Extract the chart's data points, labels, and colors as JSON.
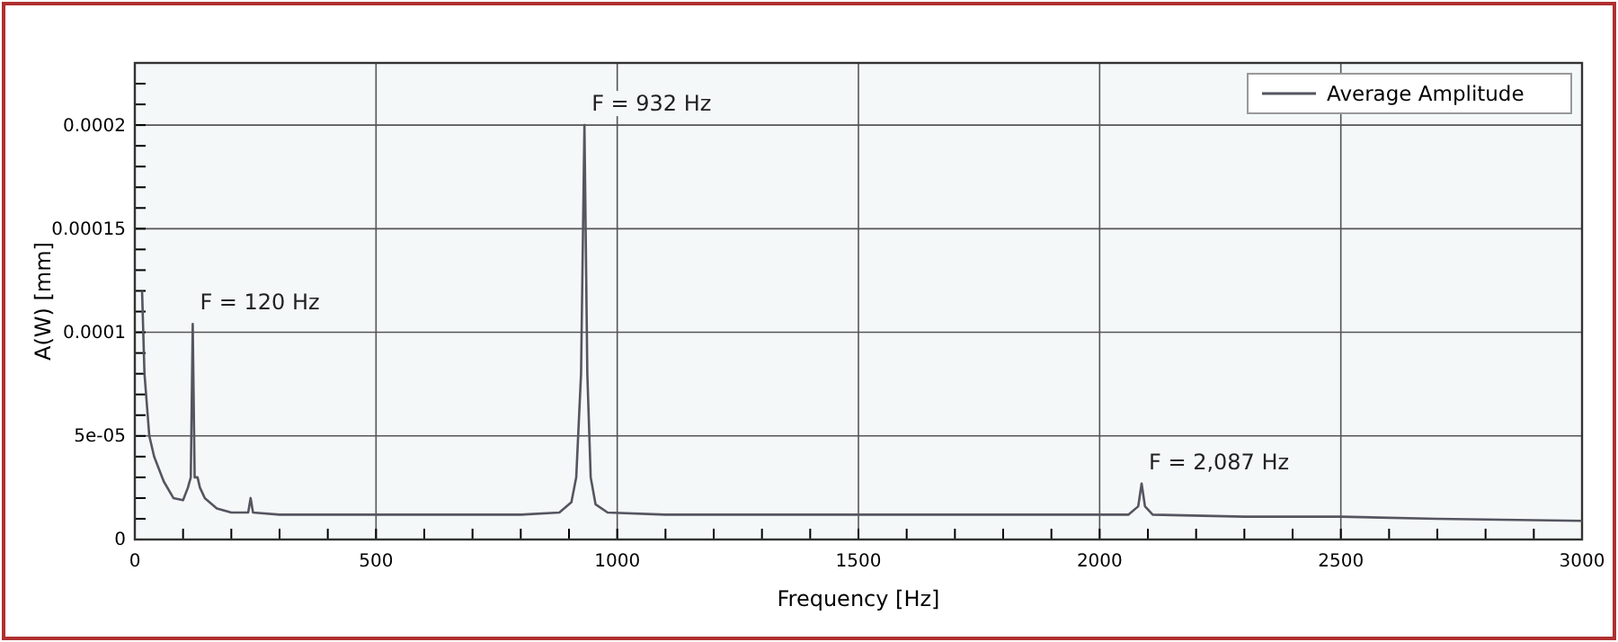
{
  "chart_data": {
    "type": "line",
    "xlabel": "Frequency [Hz]",
    "ylabel": "A(W) [mm]",
    "x": [
      15,
      20,
      30,
      40,
      60,
      80,
      100,
      110,
      116,
      120,
      124,
      130,
      135,
      145,
      170,
      200,
      235,
      240,
      245,
      300,
      400,
      500,
      600,
      700,
      800,
      880,
      905,
      915,
      925,
      932,
      938,
      945,
      955,
      980,
      1100,
      1300,
      1500,
      1700,
      1900,
      2060,
      2080,
      2087,
      2094,
      2110,
      2300,
      2500,
      2700,
      3000
    ],
    "series": [
      {
        "name": "Average Amplitude",
        "color": "#555560",
        "values": [
          0.00012,
          8e-05,
          5e-05,
          4e-05,
          2.8e-05,
          2e-05,
          1.9e-05,
          2.5e-05,
          3e-05,
          0.000104,
          3e-05,
          3e-05,
          2.5e-05,
          2e-05,
          1.5e-05,
          1.3e-05,
          1.3e-05,
          2e-05,
          1.3e-05,
          1.2e-05,
          1.2e-05,
          1.2e-05,
          1.2e-05,
          1.2e-05,
          1.2e-05,
          1.3e-05,
          1.8e-05,
          3e-05,
          8e-05,
          0.0002,
          8e-05,
          3e-05,
          1.7e-05,
          1.3e-05,
          1.2e-05,
          1.2e-05,
          1.2e-05,
          1.2e-05,
          1.2e-05,
          1.2e-05,
          1.6e-05,
          2.7e-05,
          1.6e-05,
          1.2e-05,
          1.1e-05,
          1.1e-05,
          1e-05,
          9e-06
        ]
      }
    ],
    "xlim": [
      0,
      3000
    ],
    "xticks": [
      0,
      {
        "value": 100,
        "label": null
      },
      {
        "value": 200,
        "label": null
      },
      {
        "value": 300,
        "label": null
      },
      {
        "value": 400,
        "label": null
      },
      500,
      {
        "value": 600,
        "label": null
      },
      {
        "value": 700,
        "label": null
      },
      {
        "value": 800,
        "label": null
      },
      {
        "value": 900,
        "label": null
      },
      1000,
      {
        "value": 1100,
        "label": null
      },
      {
        "value": 1200,
        "label": null
      },
      {
        "value": 1300,
        "label": null
      },
      {
        "value": 1400,
        "label": null
      },
      1500,
      {
        "value": 1600,
        "label": null
      },
      {
        "value": 1700,
        "label": null
      },
      {
        "value": 1800,
        "label": null
      },
      {
        "value": 1900,
        "label": null
      },
      2000,
      {
        "value": 2100,
        "label": null
      },
      {
        "value": 2200,
        "label": null
      },
      {
        "value": 2300,
        "label": null
      },
      {
        "value": 2400,
        "label": null
      },
      2500,
      {
        "value": 2600,
        "label": null
      },
      {
        "value": 2700,
        "label": null
      },
      {
        "value": 2800,
        "label": null
      },
      {
        "value": 2900,
        "label": null
      },
      3000
    ],
    "ylim": [
      0,
      0.00023
    ],
    "yticks": [
      0,
      {
        "value": 1e-05,
        "label": null
      },
      {
        "value": 2e-05,
        "label": null
      },
      {
        "value": 3e-05,
        "label": null
      },
      {
        "value": 4e-05,
        "label": null
      },
      {
        "value": 5e-05,
        "label": "5e-05"
      },
      {
        "value": 6e-05,
        "label": null
      },
      {
        "value": 7e-05,
        "label": null
      },
      {
        "value": 8e-05,
        "label": null
      },
      {
        "value": 9e-05,
        "label": null
      },
      {
        "value": 0.0001,
        "label": "0.0001"
      },
      {
        "value": 0.00011,
        "label": null
      },
      {
        "value": 0.00012,
        "label": null
      },
      {
        "value": 0.00013,
        "label": null
      },
      {
        "value": 0.00014,
        "label": null
      },
      {
        "value": 0.00015,
        "label": "0.00015"
      },
      {
        "value": 0.00016,
        "label": null
      },
      {
        "value": 0.00017,
        "label": null
      },
      {
        "value": 0.00018,
        "label": null
      },
      {
        "value": 0.00019,
        "label": null
      },
      {
        "value": 0.0002,
        "label": "0.0002"
      },
      {
        "value": 0.00021,
        "label": null
      },
      {
        "value": 0.00022,
        "label": null
      }
    ],
    "grid": true,
    "legend": "top right",
    "marker": "none",
    "line_style": "solid",
    "annotations": [
      {
        "text": "F = 120 Hz",
        "x": 120,
        "y": 0.000104
      },
      {
        "text": "F = 932 Hz",
        "x": 932,
        "y": 0.0002
      },
      {
        "text": "F = 2,087 Hz",
        "x": 2087,
        "y": 2.7e-05
      }
    ]
  }
}
